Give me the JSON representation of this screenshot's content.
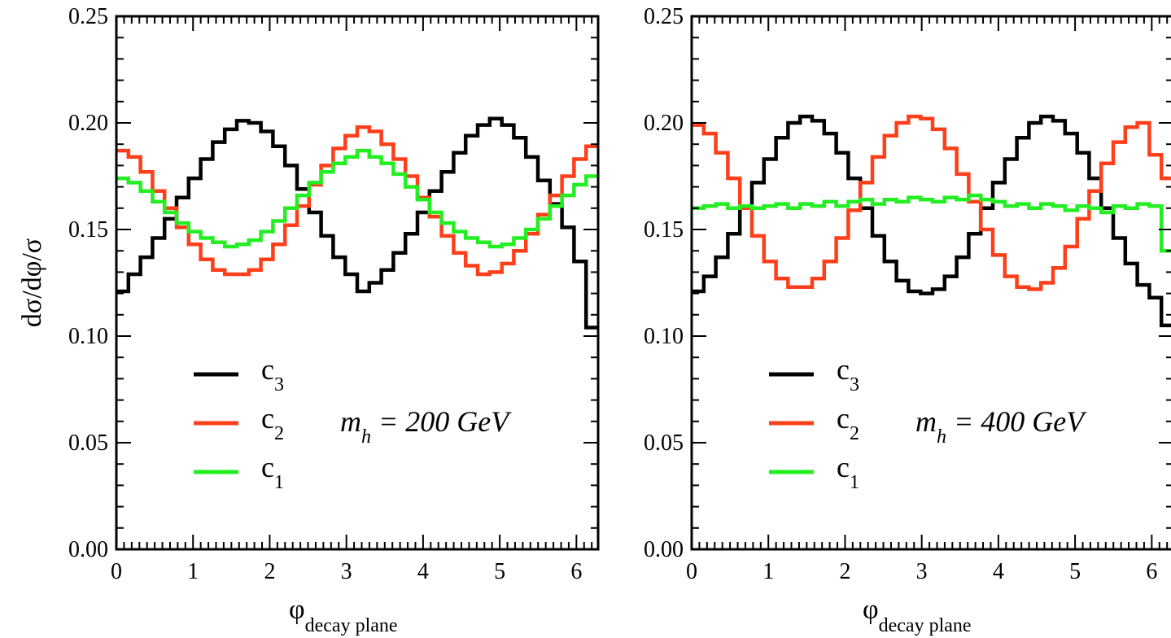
{
  "chart_data": [
    {
      "type": "line",
      "step": true,
      "xlabel": "φ",
      "xlabel_sub": "decay plane",
      "ylabel": "dσ/dφ/σ",
      "xlim": [
        0,
        6.283
      ],
      "ylim": [
        0.0,
        0.25
      ],
      "x_ticks": [
        0,
        1,
        2,
        3,
        4,
        5,
        6
      ],
      "y_ticks": [
        0.0,
        0.05,
        0.1,
        0.15,
        0.2,
        0.25
      ],
      "x_tick_labels": [
        "0",
        "1",
        "2",
        "3",
        "4",
        "5",
        "6"
      ],
      "y_tick_labels": [
        "0.00",
        "0.05",
        "0.10",
        "0.15",
        "0.20",
        "0.25"
      ],
      "grid": false,
      "legend_position": "lower-left",
      "annotation": {
        "text": "m",
        "sub": "h",
        "rest": " = 200 GeV"
      },
      "bin_edges": [
        0.0,
        0.157,
        0.314,
        0.471,
        0.628,
        0.785,
        0.942,
        1.1,
        1.257,
        1.414,
        1.571,
        1.728,
        1.885,
        2.042,
        2.199,
        2.356,
        2.513,
        2.67,
        2.827,
        2.985,
        3.142,
        3.299,
        3.456,
        3.613,
        3.77,
        3.927,
        4.084,
        4.241,
        4.398,
        4.555,
        4.712,
        4.869,
        5.027,
        5.184,
        5.341,
        5.498,
        5.655,
        5.812,
        5.969,
        6.126,
        6.283
      ],
      "series": [
        {
          "name": "c",
          "sub": "3",
          "color": "#000000",
          "values": [
            0.121,
            0.129,
            0.137,
            0.146,
            0.155,
            0.165,
            0.174,
            0.183,
            0.191,
            0.197,
            0.201,
            0.2,
            0.196,
            0.189,
            0.18,
            0.169,
            0.158,
            0.147,
            0.137,
            0.129,
            0.121,
            0.125,
            0.131,
            0.139,
            0.148,
            0.158,
            0.168,
            0.177,
            0.186,
            0.194,
            0.199,
            0.202,
            0.199,
            0.193,
            0.184,
            0.173,
            0.162,
            0.151,
            0.135,
            0.104
          ]
        },
        {
          "name": "c",
          "sub": "2",
          "color": "#ff3e1a",
          "values": [
            0.187,
            0.184,
            0.177,
            0.168,
            0.16,
            0.151,
            0.143,
            0.136,
            0.131,
            0.129,
            0.129,
            0.131,
            0.136,
            0.143,
            0.152,
            0.161,
            0.171,
            0.18,
            0.188,
            0.194,
            0.198,
            0.196,
            0.19,
            0.183,
            0.175,
            0.165,
            0.156,
            0.147,
            0.139,
            0.133,
            0.129,
            0.13,
            0.134,
            0.14,
            0.148,
            0.157,
            0.166,
            0.175,
            0.183,
            0.189
          ]
        },
        {
          "name": "c",
          "sub": "1",
          "color": "#22ee22",
          "values": [
            0.174,
            0.172,
            0.168,
            0.163,
            0.158,
            0.153,
            0.149,
            0.146,
            0.144,
            0.142,
            0.143,
            0.145,
            0.149,
            0.154,
            0.16,
            0.166,
            0.172,
            0.177,
            0.181,
            0.184,
            0.187,
            0.184,
            0.181,
            0.176,
            0.17,
            0.164,
            0.158,
            0.153,
            0.149,
            0.146,
            0.144,
            0.142,
            0.143,
            0.146,
            0.15,
            0.155,
            0.161,
            0.166,
            0.171,
            0.175
          ]
        }
      ]
    },
    {
      "type": "line",
      "step": true,
      "xlabel": "φ",
      "xlabel_sub": "decay plane",
      "ylabel": "",
      "xlim": [
        0,
        6.283
      ],
      "ylim": [
        0.0,
        0.25
      ],
      "x_ticks": [
        0,
        1,
        2,
        3,
        4,
        5,
        6
      ],
      "y_ticks": [
        0.0,
        0.05,
        0.1,
        0.15,
        0.2,
        0.25
      ],
      "x_tick_labels": [
        "0",
        "1",
        "2",
        "3",
        "4",
        "5",
        "6"
      ],
      "y_tick_labels": [
        "0.00",
        "0.05",
        "0.10",
        "0.15",
        "0.20",
        "0.25"
      ],
      "grid": false,
      "legend_position": "lower-left",
      "annotation": {
        "text": "m",
        "sub": "h",
        "rest": " = 400 GeV"
      },
      "bin_edges": [
        0.0,
        0.157,
        0.314,
        0.471,
        0.628,
        0.785,
        0.942,
        1.1,
        1.257,
        1.414,
        1.571,
        1.728,
        1.885,
        2.042,
        2.199,
        2.356,
        2.513,
        2.67,
        2.827,
        2.985,
        3.142,
        3.299,
        3.456,
        3.613,
        3.77,
        3.927,
        4.084,
        4.241,
        4.398,
        4.555,
        4.712,
        4.869,
        5.027,
        5.184,
        5.341,
        5.498,
        5.655,
        5.812,
        5.969,
        6.126,
        6.283
      ],
      "series": [
        {
          "name": "c",
          "sub": "3",
          "color": "#000000",
          "values": [
            0.121,
            0.128,
            0.137,
            0.148,
            0.16,
            0.172,
            0.183,
            0.193,
            0.2,
            0.203,
            0.201,
            0.195,
            0.186,
            0.174,
            0.16,
            0.147,
            0.135,
            0.126,
            0.121,
            0.12,
            0.122,
            0.128,
            0.137,
            0.148,
            0.16,
            0.172,
            0.183,
            0.193,
            0.2,
            0.203,
            0.201,
            0.195,
            0.186,
            0.174,
            0.16,
            0.146,
            0.134,
            0.124,
            0.118,
            0.105
          ]
        },
        {
          "name": "c",
          "sub": "2",
          "color": "#ff3e1a",
          "values": [
            0.199,
            0.195,
            0.186,
            0.174,
            0.16,
            0.147,
            0.135,
            0.127,
            0.123,
            0.123,
            0.127,
            0.135,
            0.146,
            0.159,
            0.172,
            0.184,
            0.194,
            0.2,
            0.203,
            0.202,
            0.197,
            0.188,
            0.176,
            0.163,
            0.15,
            0.138,
            0.128,
            0.123,
            0.122,
            0.125,
            0.132,
            0.142,
            0.155,
            0.168,
            0.181,
            0.191,
            0.198,
            0.2,
            0.185,
            0.174
          ]
        },
        {
          "name": "c",
          "sub": "1",
          "color": "#22ee22",
          "values": [
            0.16,
            0.161,
            0.162,
            0.16,
            0.161,
            0.16,
            0.161,
            0.162,
            0.16,
            0.162,
            0.161,
            0.163,
            0.161,
            0.163,
            0.164,
            0.162,
            0.164,
            0.163,
            0.165,
            0.164,
            0.163,
            0.165,
            0.164,
            0.166,
            0.164,
            0.163,
            0.161,
            0.162,
            0.16,
            0.162,
            0.161,
            0.159,
            0.161,
            0.16,
            0.158,
            0.161,
            0.16,
            0.162,
            0.161,
            0.14
          ]
        }
      ]
    }
  ]
}
